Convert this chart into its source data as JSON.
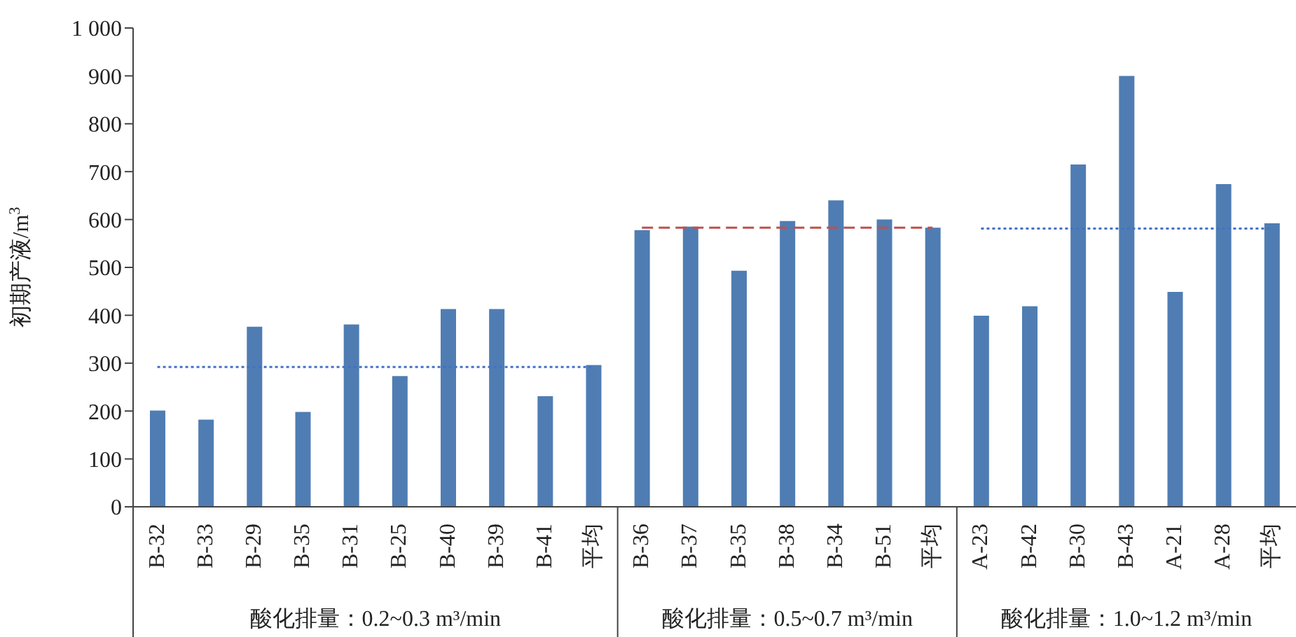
{
  "chart_data": {
    "type": "bar",
    "ylabel": "初期产液/m$^{3}$",
    "categories": [
      "B-32",
      "B-33",
      "B-29",
      "B-35",
      "B-31",
      "B-25",
      "B-40",
      "B-39",
      "B-41",
      "平均",
      "B-36",
      "B-37",
      "B-35",
      "B-38",
      "B-34",
      "B-51",
      "平均",
      "A-23",
      "B-42",
      "B-30",
      "B-43",
      "A-21",
      "A-28",
      "平均"
    ],
    "values": [
      201,
      182,
      376,
      198,
      381,
      273,
      413,
      413,
      231,
      296,
      578,
      585,
      493,
      597,
      640,
      600,
      583,
      399,
      419,
      715,
      900,
      449,
      674,
      592
    ],
    "color": "#4f7db3",
    "ylim": [
      0,
      1000
    ],
    "yticks": [
      0,
      100,
      200,
      300,
      400,
      500,
      600,
      700,
      800,
      900,
      {
        "value": 1000,
        "label": "1 000"
      }
    ],
    "grid": false,
    "ref_lines": [
      {
        "axis": "y",
        "value": 292,
        "color": "#4472c4",
        "line_style": "dotted"
      },
      {
        "axis": "y",
        "value": 583,
        "color": "#c0504d",
        "line_style": "dashed"
      },
      {
        "axis": "y",
        "value": 581,
        "color": "#4472c4",
        "line_style": "dotted"
      }
    ],
    "annotations": [
      "酸化排量：0.2~0.3 m³/min",
      "酸化排量：0.5~0.7 m³/min",
      "酸化排量：1.0~1.2 m³/min"
    ]
  }
}
